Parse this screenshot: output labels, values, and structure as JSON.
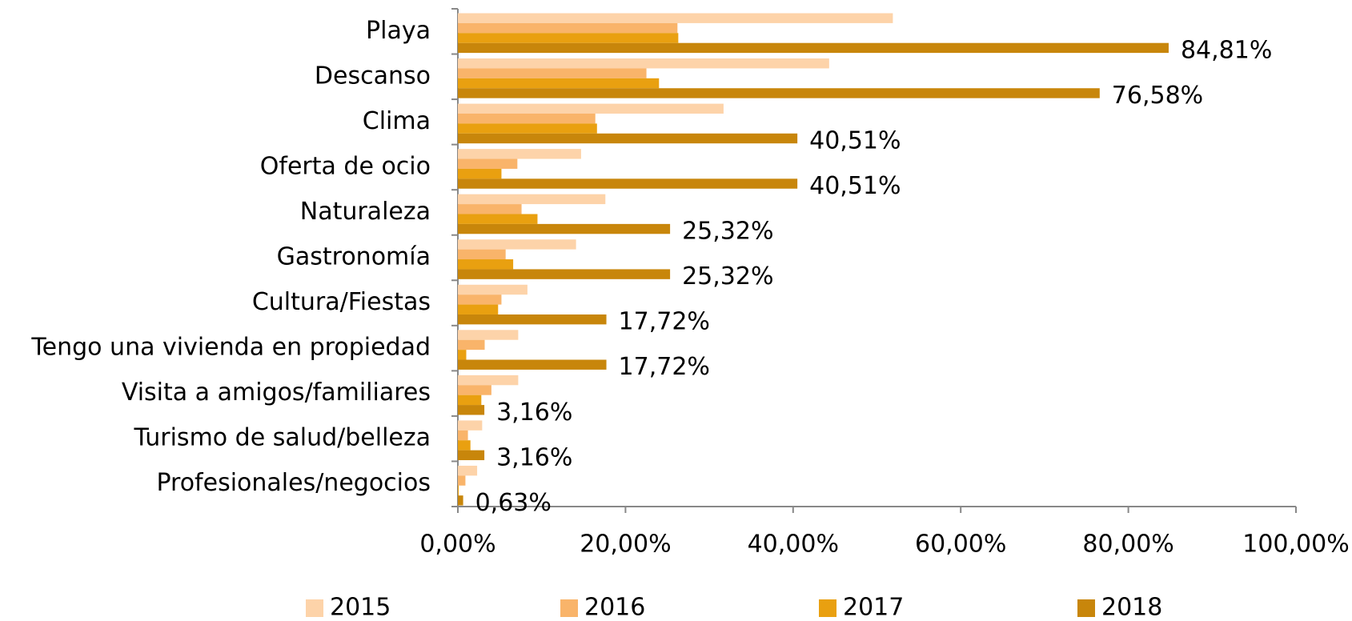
{
  "chart_data": {
    "type": "bar",
    "orientation": "horizontal",
    "categories": [
      "Playa",
      "Descanso",
      "Clima",
      "Oferta de ocio",
      "Naturaleza",
      "Gastronomía",
      "Cultura/Fiestas",
      "Tengo una vivienda en propiedad",
      "Visita a amigos/familiares",
      "Turismo de salud/belleza",
      "Profesionales/negocios"
    ],
    "series": [
      {
        "name": "2015",
        "color": "#fdd3a9",
        "values": [
          51.9,
          44.3,
          31.7,
          14.7,
          17.6,
          14.1,
          8.3,
          7.2,
          7.2,
          2.9,
          2.3
        ]
      },
      {
        "name": "2016",
        "color": "#f9b46a",
        "values": [
          26.2,
          22.5,
          16.4,
          7.1,
          7.6,
          5.7,
          5.2,
          3.2,
          4.0,
          1.2,
          0.9
        ]
      },
      {
        "name": "2017",
        "color": "#e9a010",
        "values": [
          26.3,
          24.0,
          16.6,
          5.2,
          9.5,
          6.6,
          4.8,
          1.0,
          2.8,
          1.5,
          0.1
        ]
      },
      {
        "name": "2018",
        "color": "#c8860b",
        "values": [
          84.81,
          76.58,
          40.51,
          40.51,
          25.32,
          25.32,
          17.72,
          17.72,
          3.16,
          3.16,
          0.63
        ],
        "value_labels": [
          "84,81%",
          "76,58%",
          "40,51%",
          "40,51%",
          "25,32%",
          "25,32%",
          "17,72%",
          "17,72%",
          "3,16%",
          "3,16%",
          "0,63%"
        ]
      }
    ],
    "xlim": [
      0,
      100
    ],
    "xticks": [
      {
        "value": 0,
        "label": "0,00%"
      },
      {
        "value": 20,
        "label": "20,00%"
      },
      {
        "value": 40,
        "label": "40,00%"
      },
      {
        "value": 60,
        "label": "60,00%"
      },
      {
        "value": 80,
        "label": "80,00%"
      },
      {
        "value": 100,
        "label": "100,00%"
      }
    ],
    "legend": "bottom"
  }
}
